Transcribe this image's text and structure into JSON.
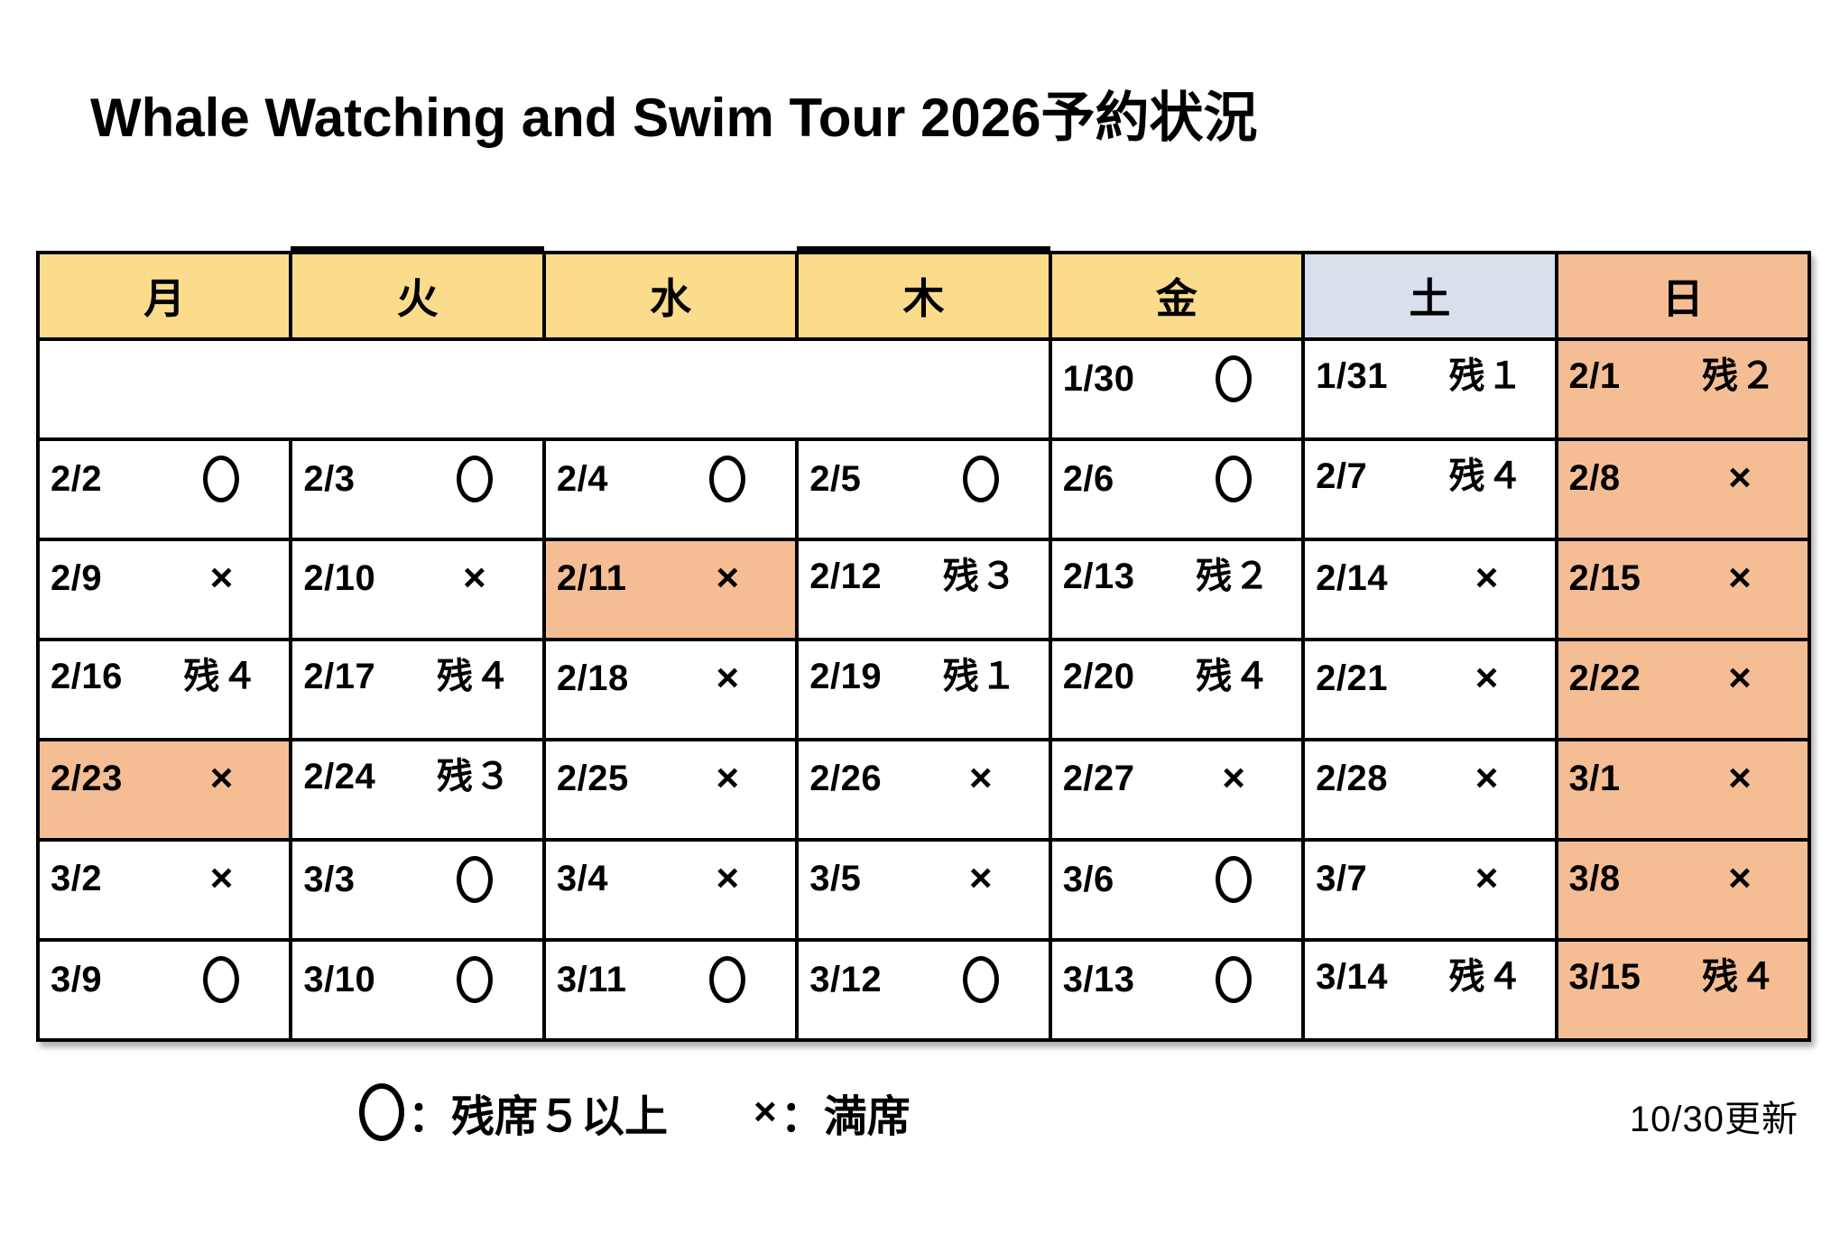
{
  "title": "Whale Watching and Swim Tour 2026予約状況",
  "colors": {
    "weekday_bg": "#FBDC8C",
    "saturday_bg": "#D8E0EC",
    "sunday_bg": "#F5BD94",
    "holiday_bg": "#F5BD94",
    "border": "#000000"
  },
  "calendar": {
    "headers": [
      {
        "label": "月",
        "day": "monday",
        "bg": "weekday_bg",
        "bold_top": false
      },
      {
        "label": "火",
        "day": "tuesday",
        "bg": "weekday_bg",
        "bold_top": true
      },
      {
        "label": "水",
        "day": "wednesday",
        "bg": "weekday_bg",
        "bold_top": false
      },
      {
        "label": "木",
        "day": "thursday",
        "bg": "weekday_bg",
        "bold_top": true
      },
      {
        "label": "金",
        "day": "friday",
        "bg": "weekday_bg",
        "bold_top": false
      },
      {
        "label": "土",
        "day": "saturday",
        "bg": "saturday_bg",
        "bold_top": false
      },
      {
        "label": "日",
        "day": "sunday",
        "bg": "sunday_bg",
        "bold_top": false
      }
    ],
    "rows": [
      [
        {
          "span": 4
        },
        {
          "date": "1/30",
          "mark": "〇"
        },
        {
          "date": "1/31",
          "mark": "残１"
        },
        {
          "date": "2/1",
          "mark": "残２",
          "highlight": true
        }
      ],
      [
        {
          "date": "2/2",
          "mark": "〇"
        },
        {
          "date": "2/3",
          "mark": "〇"
        },
        {
          "date": "2/4",
          "mark": "〇"
        },
        {
          "date": "2/5",
          "mark": "〇"
        },
        {
          "date": "2/6",
          "mark": "〇"
        },
        {
          "date": "2/7",
          "mark": "残４"
        },
        {
          "date": "2/8",
          "mark": "×",
          "highlight": true
        }
      ],
      [
        {
          "date": "2/9",
          "mark": "×"
        },
        {
          "date": "2/10",
          "mark": "×"
        },
        {
          "date": "2/11",
          "mark": "×",
          "highlight": true
        },
        {
          "date": "2/12",
          "mark": "残３"
        },
        {
          "date": "2/13",
          "mark": "残２"
        },
        {
          "date": "2/14",
          "mark": "×"
        },
        {
          "date": "2/15",
          "mark": "×",
          "highlight": true
        }
      ],
      [
        {
          "date": "2/16",
          "mark": "残４"
        },
        {
          "date": "2/17",
          "mark": "残４"
        },
        {
          "date": "2/18",
          "mark": "×"
        },
        {
          "date": "2/19",
          "mark": "残１"
        },
        {
          "date": "2/20",
          "mark": "残４"
        },
        {
          "date": "2/21",
          "mark": "×"
        },
        {
          "date": "2/22",
          "mark": "×",
          "highlight": true
        }
      ],
      [
        {
          "date": "2/23",
          "mark": "×",
          "highlight": true
        },
        {
          "date": "2/24",
          "mark": "残３"
        },
        {
          "date": "2/25",
          "mark": "×"
        },
        {
          "date": "2/26",
          "mark": "×"
        },
        {
          "date": "2/27",
          "mark": "×"
        },
        {
          "date": "2/28",
          "mark": "×"
        },
        {
          "date": "3/1",
          "mark": "×",
          "highlight": true
        }
      ],
      [
        {
          "date": "3/2",
          "mark": "×"
        },
        {
          "date": "3/3",
          "mark": "〇"
        },
        {
          "date": "3/4",
          "mark": "×"
        },
        {
          "date": "3/5",
          "mark": "×"
        },
        {
          "date": "3/6",
          "mark": "〇"
        },
        {
          "date": "3/7",
          "mark": "×"
        },
        {
          "date": "3/8",
          "mark": "×",
          "highlight": true
        }
      ],
      [
        {
          "date": "3/9",
          "mark": "〇"
        },
        {
          "date": "3/10",
          "mark": "〇"
        },
        {
          "date": "3/11",
          "mark": "〇"
        },
        {
          "date": "3/12",
          "mark": "〇"
        },
        {
          "date": "3/13",
          "mark": "〇"
        },
        {
          "date": "3/14",
          "mark": "残４"
        },
        {
          "date": "3/15",
          "mark": "残４",
          "highlight": true
        }
      ]
    ]
  },
  "legend": {
    "available_symbol": "〇",
    "available_text": "：残席５以上",
    "full_symbol": "×",
    "full_text": "：満席"
  },
  "updated": "10/30更新"
}
